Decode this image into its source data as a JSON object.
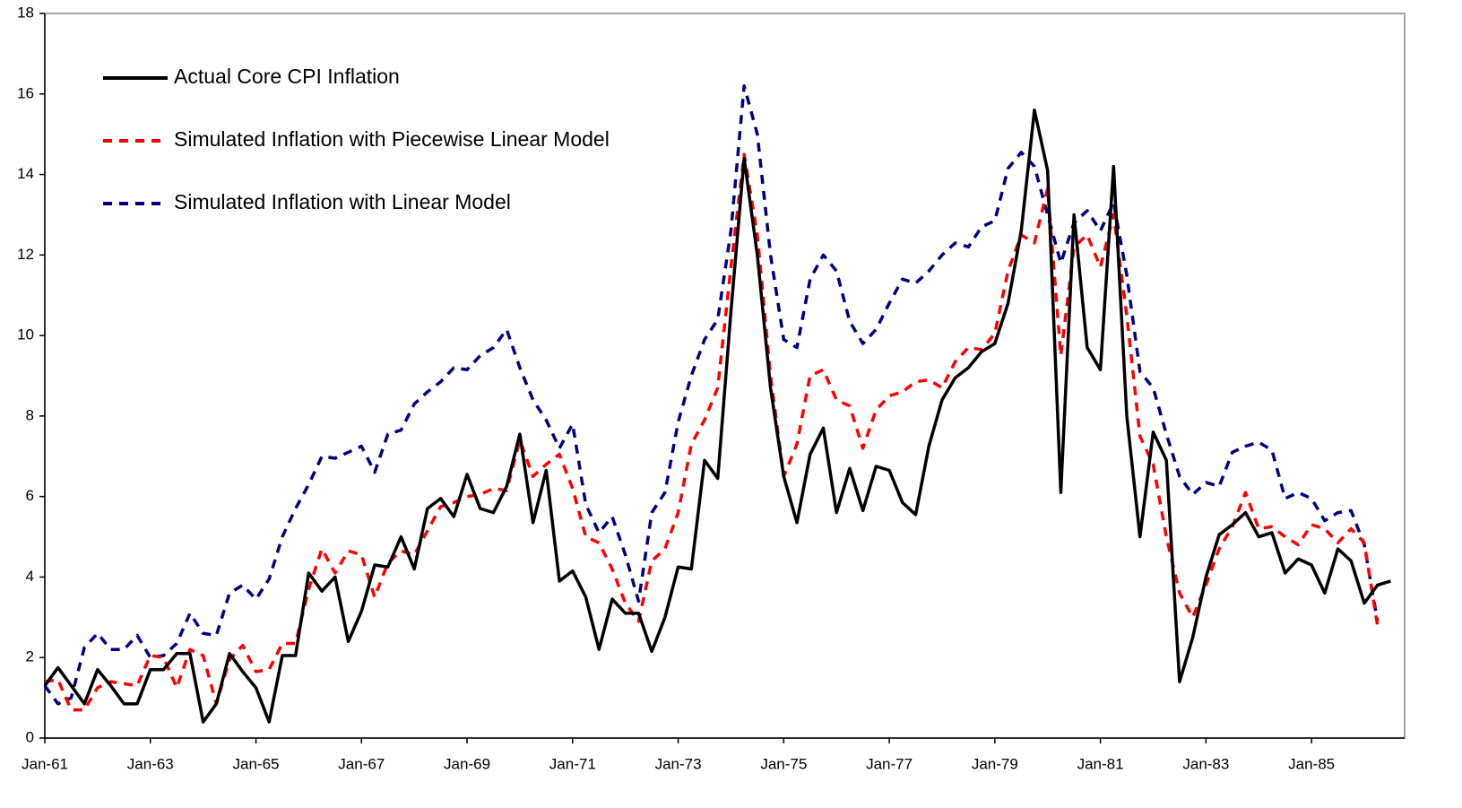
{
  "chart_data": {
    "type": "line",
    "categories": [
      "Jan-61",
      null,
      null,
      null,
      null,
      null,
      null,
      null,
      "Jan-63",
      null,
      null,
      null,
      null,
      null,
      null,
      null,
      "Jan-65",
      null,
      null,
      null,
      null,
      null,
      null,
      null,
      "Jan-67",
      null,
      null,
      null,
      null,
      null,
      null,
      null,
      "Jan-69",
      null,
      null,
      null,
      null,
      null,
      null,
      null,
      "Jan-71",
      null,
      null,
      null,
      null,
      null,
      null,
      null,
      "Jan-73",
      null,
      null,
      null,
      null,
      null,
      null,
      null,
      "Jan-75",
      null,
      null,
      null,
      null,
      null,
      null,
      null,
      "Jan-77",
      null,
      null,
      null,
      null,
      null,
      null,
      null,
      "Jan-79",
      null,
      null,
      null,
      null,
      null,
      null,
      null,
      "Jan-81",
      null,
      null,
      null,
      null,
      null,
      null,
      null,
      "Jan-83",
      null,
      null,
      null,
      null,
      null,
      null,
      null,
      "Jan-85",
      null,
      null,
      null,
      null,
      null,
      null
    ],
    "series": [
      {
        "name": "Actual Core CPI Inflation",
        "color": "#000000",
        "dashed": false,
        "values": [
          1.3,
          1.75,
          1.3,
          0.85,
          1.7,
          1.3,
          0.85,
          0.85,
          1.7,
          1.7,
          2.1,
          2.1,
          0.4,
          0.85,
          2.1,
          1.65,
          1.25,
          0.4,
          2.05,
          2.05,
          4.1,
          3.65,
          4.0,
          2.4,
          3.15,
          4.3,
          4.25,
          5.0,
          4.2,
          5.7,
          5.95,
          5.5,
          6.55,
          5.7,
          5.6,
          6.25,
          7.55,
          5.35,
          6.65,
          3.9,
          4.15,
          3.5,
          2.2,
          3.45,
          3.1,
          3.1,
          2.15,
          3.0,
          4.25,
          4.2,
          6.9,
          6.45,
          10.6,
          14.4,
          12.0,
          8.7,
          6.5,
          5.35,
          7.05,
          7.7,
          5.6,
          6.7,
          5.65,
          6.75,
          6.65,
          5.85,
          5.55,
          7.25,
          8.4,
          8.95,
          9.2,
          9.6,
          9.8,
          10.8,
          12.6,
          15.6,
          14.1,
          6.1,
          13.0,
          9.7,
          9.15,
          14.2,
          8.0,
          5.0,
          7.6,
          6.9,
          1.4,
          2.5,
          4.0,
          5.05,
          5.3,
          5.6,
          5.0,
          5.1,
          4.1,
          4.45,
          4.3,
          3.6,
          4.7,
          4.4,
          3.35,
          3.8,
          3.9
        ]
      },
      {
        "name": "Simulated Inflation with Piecewise Linear Model",
        "color": "#ff0000",
        "dashed": true,
        "values": [
          1.4,
          1.45,
          0.7,
          0.7,
          1.25,
          1.4,
          1.35,
          1.3,
          2.05,
          2.0,
          1.25,
          2.2,
          2.05,
          0.85,
          1.95,
          2.3,
          1.65,
          1.7,
          2.35,
          2.35,
          3.7,
          4.7,
          4.1,
          4.65,
          4.55,
          3.5,
          4.35,
          4.65,
          4.55,
          5.15,
          5.75,
          5.85,
          6.0,
          6.05,
          6.2,
          6.15,
          7.4,
          6.5,
          6.8,
          7.05,
          6.2,
          5.0,
          4.85,
          4.2,
          3.35,
          2.9,
          4.4,
          4.7,
          5.6,
          7.3,
          7.9,
          8.7,
          11.7,
          14.5,
          12.5,
          9.0,
          6.5,
          7.3,
          9.0,
          9.15,
          8.4,
          8.25,
          7.2,
          8.15,
          8.5,
          8.6,
          8.85,
          8.9,
          8.7,
          9.35,
          9.7,
          9.65,
          10.05,
          11.6,
          12.5,
          12.3,
          13.65,
          9.5,
          12.2,
          12.5,
          11.7,
          13.0,
          10.5,
          7.5,
          6.8,
          5.0,
          3.6,
          3.0,
          3.8,
          4.7,
          5.25,
          6.1,
          5.2,
          5.25,
          5.0,
          4.8,
          5.3,
          5.2,
          4.85,
          5.2,
          4.85,
          2.8,
          null
        ]
      },
      {
        "name": "Simulated Inflation with Linear Model",
        "color": "#000080",
        "dashed": true,
        "values": [
          1.3,
          0.85,
          1.0,
          2.25,
          2.6,
          2.2,
          2.2,
          2.55,
          2.0,
          2.05,
          2.35,
          3.1,
          2.6,
          2.55,
          3.6,
          3.8,
          3.45,
          3.95,
          5.0,
          5.7,
          6.3,
          7.0,
          6.95,
          7.1,
          7.25,
          6.6,
          7.55,
          7.65,
          8.3,
          8.6,
          8.85,
          9.2,
          9.15,
          9.5,
          9.7,
          10.15,
          9.2,
          8.4,
          7.9,
          7.2,
          7.8,
          5.8,
          5.1,
          5.5,
          4.55,
          3.4,
          5.6,
          6.1,
          7.85,
          9.0,
          9.9,
          10.4,
          12.6,
          16.2,
          15.0,
          12.0,
          9.9,
          9.7,
          11.4,
          12.0,
          11.6,
          10.35,
          9.8,
          10.15,
          10.8,
          11.4,
          11.3,
          11.6,
          12.0,
          12.3,
          12.2,
          12.7,
          12.85,
          14.15,
          14.55,
          14.2,
          13.0,
          11.8,
          12.8,
          13.1,
          12.6,
          13.3,
          11.5,
          9.1,
          8.7,
          7.55,
          6.5,
          6.05,
          6.35,
          6.25,
          7.1,
          7.25,
          7.35,
          7.15,
          5.95,
          6.1,
          5.95,
          5.4,
          5.6,
          5.65,
          4.8,
          2.9,
          null
        ]
      }
    ],
    "ylim": [
      0,
      18
    ],
    "yticks": [
      0,
      2,
      4,
      6,
      8,
      10,
      12,
      14,
      16,
      18
    ],
    "grid": false
  }
}
